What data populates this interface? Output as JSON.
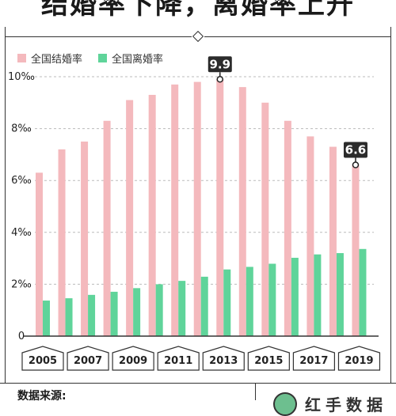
{
  "title": "结婚率下降，离婚率上升",
  "legend": {
    "marriage": "全国结婚率",
    "divorce": "全国离婚率"
  },
  "colors": {
    "marriage": "#f4b9bd",
    "divorce": "#5fd49a",
    "callout_bg": "#2b2b2b",
    "axis": "#333333",
    "grid": "#bbbbbb"
  },
  "footer": {
    "source_label": "数据来源:",
    "brand": "红手数据"
  },
  "chart_data": {
    "type": "bar",
    "years": [
      "2005",
      "2006",
      "2007",
      "2008",
      "2009",
      "2010",
      "2011",
      "2012",
      "2013",
      "2014",
      "2015",
      "2016",
      "2017",
      "2018",
      "2019"
    ],
    "tick_labels": [
      "2005",
      "2007",
      "2009",
      "2011",
      "2013",
      "2015",
      "2017",
      "2019"
    ],
    "series": [
      {
        "name": "全国结婚率",
        "values": [
          6.3,
          7.2,
          7.5,
          8.3,
          9.1,
          9.3,
          9.7,
          9.8,
          9.9,
          9.6,
          9.0,
          8.3,
          7.7,
          7.3,
          6.6
        ]
      },
      {
        "name": "全国离婚率",
        "values": [
          1.37,
          1.46,
          1.59,
          1.71,
          1.85,
          2.0,
          2.13,
          2.29,
          2.57,
          2.67,
          2.79,
          3.02,
          3.15,
          3.2,
          3.36
        ]
      }
    ],
    "ylim": [
      0,
      10
    ],
    "yticks": [
      "0",
      "2‰",
      "4‰",
      "6‰",
      "8‰",
      "10‰"
    ],
    "ytick_values": [
      0,
      2,
      4,
      6,
      8,
      10
    ],
    "callouts": [
      {
        "year": "2013",
        "label": "9.9"
      },
      {
        "year": "2019",
        "label": "6.6"
      }
    ],
    "grid": true
  }
}
